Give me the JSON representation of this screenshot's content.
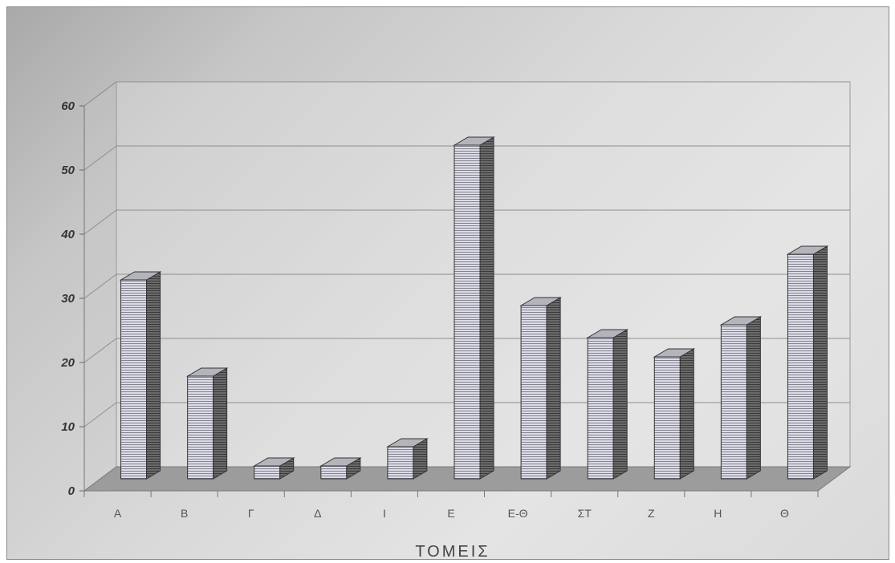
{
  "chart_data": {
    "type": "bar",
    "title": "",
    "xlabel": "ΤΟΜΕΙΣ",
    "ylabel": "",
    "categories": [
      "Α",
      "Β",
      "Γ",
      "Δ",
      "Ι",
      "Ε",
      "Ε-Θ",
      "ΣΤ",
      "Ζ",
      "Η",
      "Θ"
    ],
    "values": [
      31,
      16,
      2,
      2,
      5,
      52,
      27,
      22,
      19,
      24,
      35
    ],
    "ylim": [
      0,
      60
    ],
    "yticks": [
      "0",
      "10",
      "20",
      "30",
      "40",
      "50",
      "60"
    ],
    "grid": true,
    "legend": "none",
    "style": "3d",
    "colors": {
      "bar_front": "#d9d9e6",
      "bar_stripe": "#8c8c99",
      "bar_side": "#5a5a5a",
      "bar_top": "#b0b0b8",
      "floor": "#9a9a9a"
    }
  }
}
